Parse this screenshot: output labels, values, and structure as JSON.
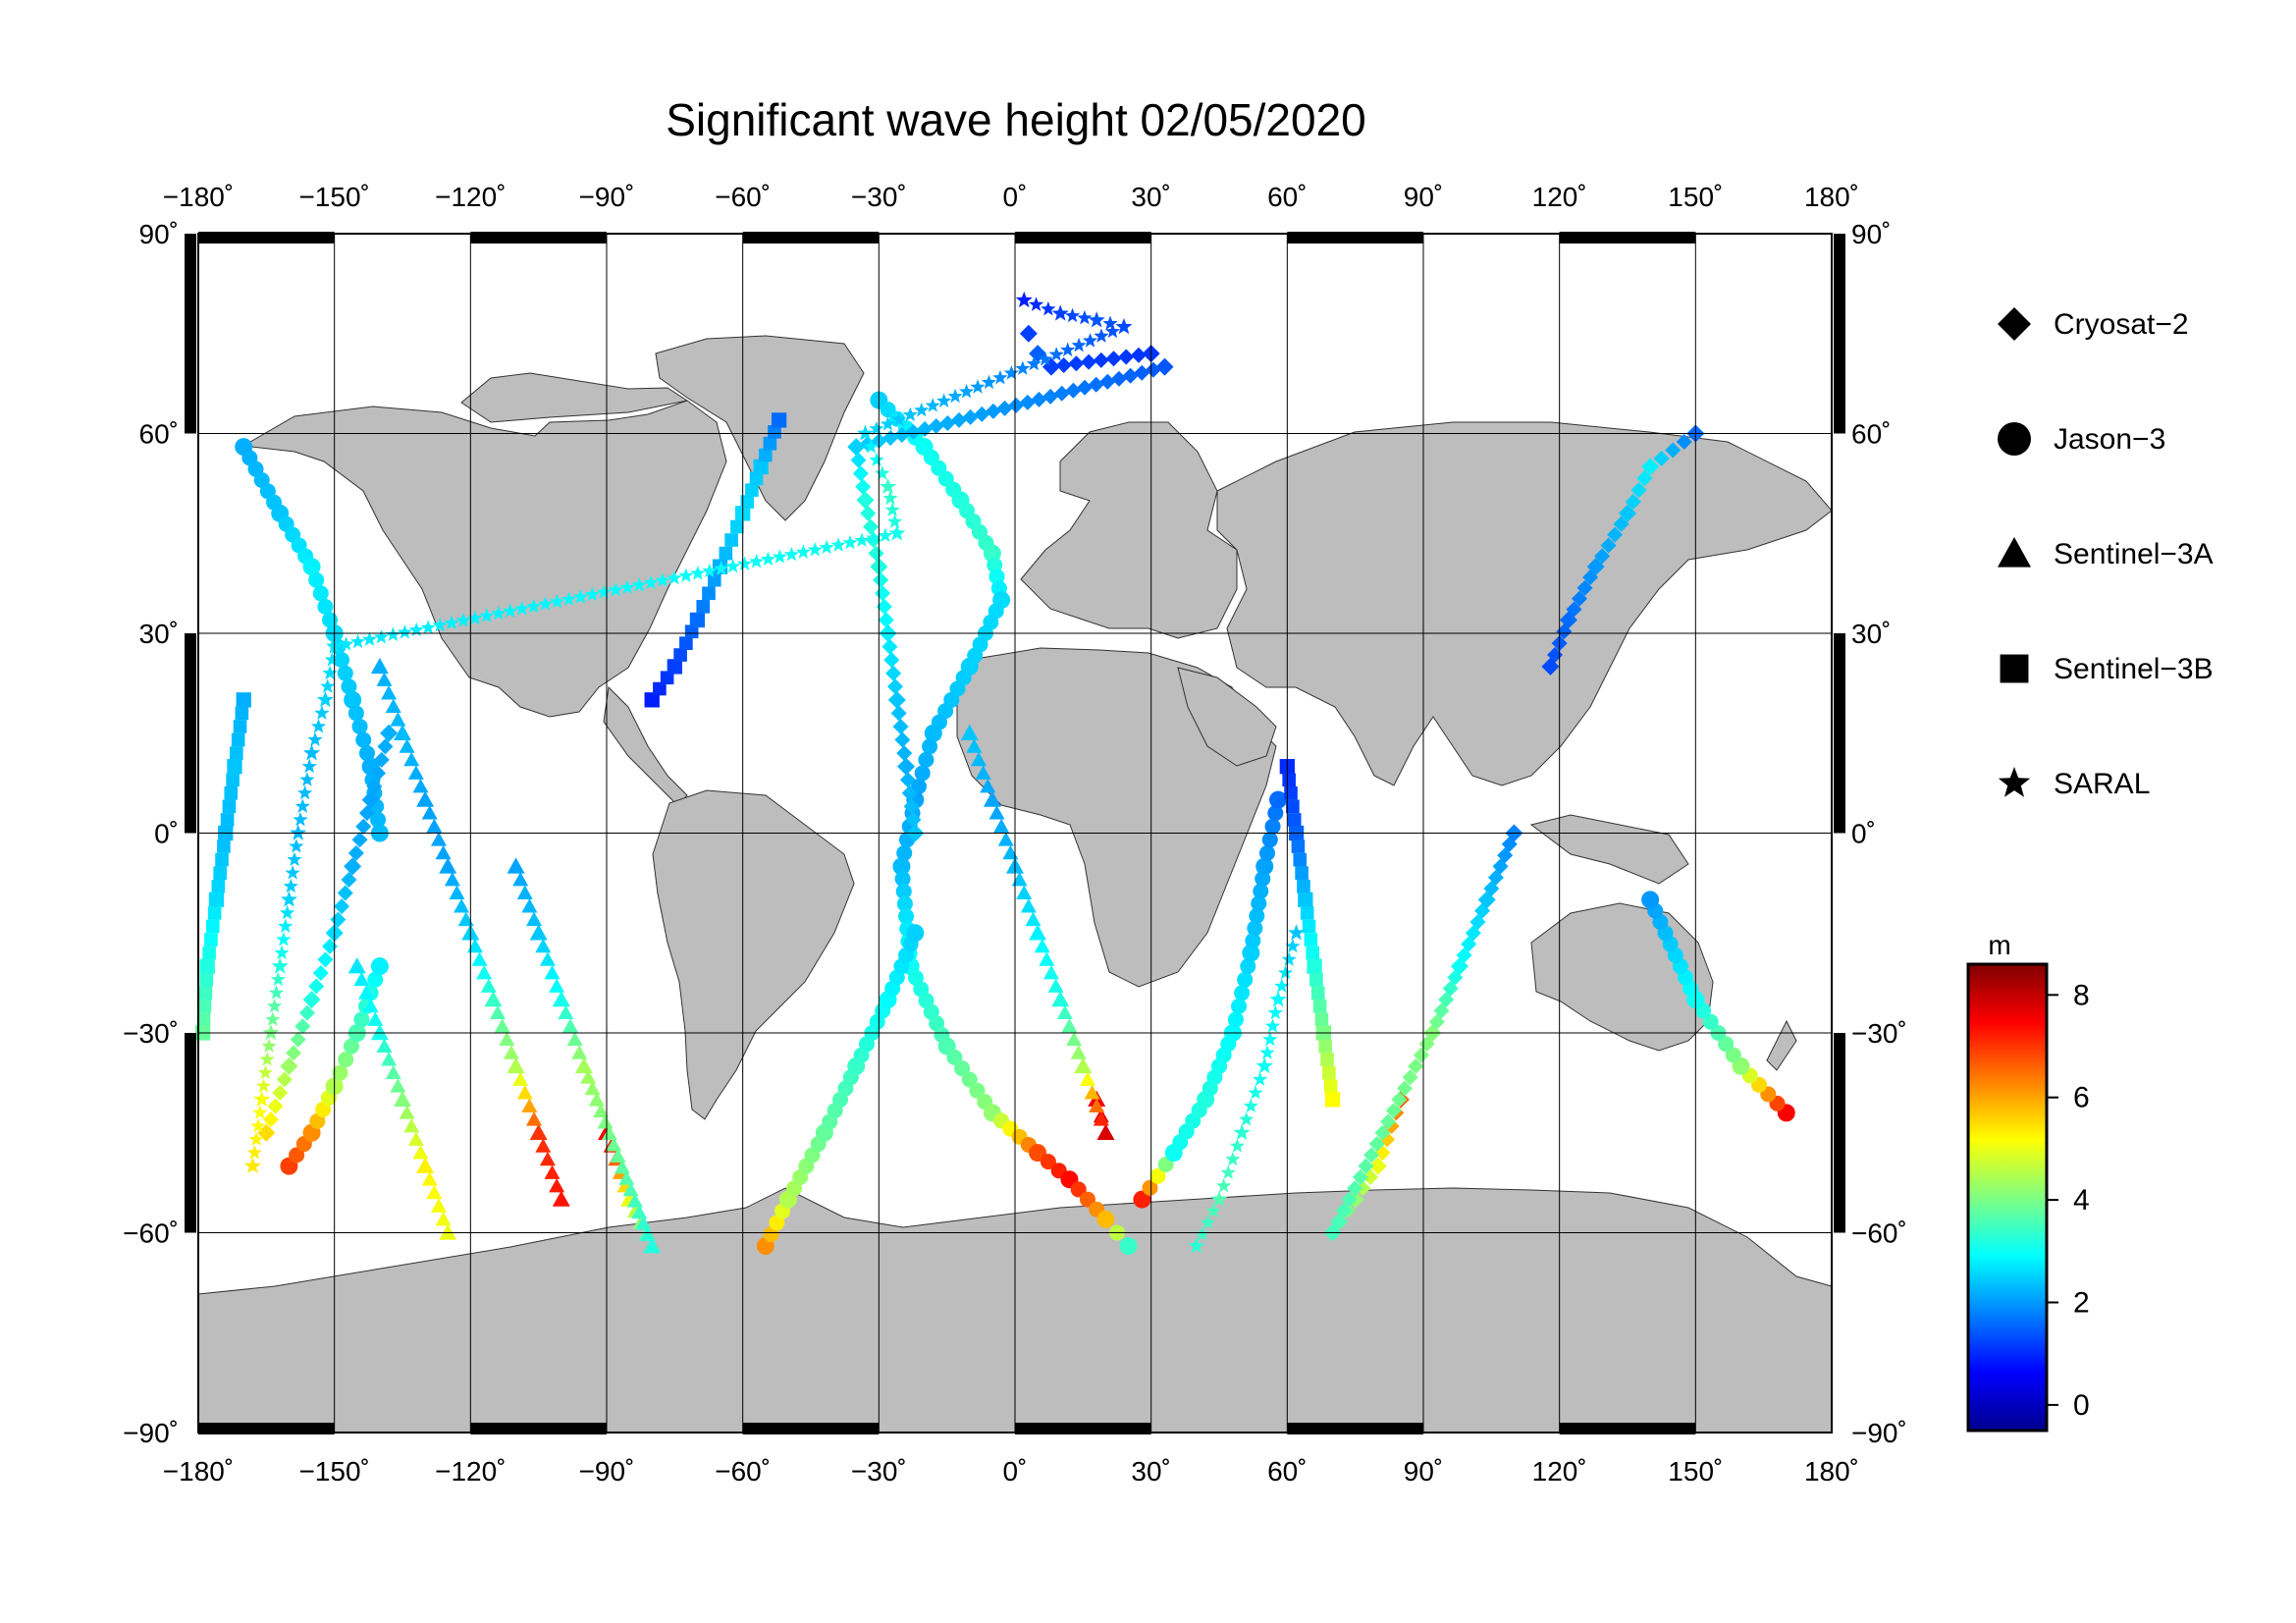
{
  "title": "Significant wave height 02/05/2020",
  "x_ticks": [
    {
      "label": "−180˚",
      "lon": -180
    },
    {
      "label": "−150˚",
      "lon": -150
    },
    {
      "label": "−120˚",
      "lon": -120
    },
    {
      "label": "−90˚",
      "lon": -90
    },
    {
      "label": "−60˚",
      "lon": -60
    },
    {
      "label": "−30˚",
      "lon": -30
    },
    {
      "label": "0˚",
      "lon": 0
    },
    {
      "label": "30˚",
      "lon": 30
    },
    {
      "label": "60˚",
      "lon": 60
    },
    {
      "label": "90˚",
      "lon": 90
    },
    {
      "label": "120˚",
      "lon": 120
    },
    {
      "label": "150˚",
      "lon": 150
    },
    {
      "label": "180˚",
      "lon": 180
    }
  ],
  "y_ticks": [
    {
      "label": "90˚",
      "lat": 90
    },
    {
      "label": "60˚",
      "lat": 60
    },
    {
      "label": "30˚",
      "lat": 30
    },
    {
      "label": "0˚",
      "lat": 0
    },
    {
      "label": "−30˚",
      "lat": -30
    },
    {
      "label": "−60˚",
      "lat": -60
    },
    {
      "label": "−90˚",
      "lat": -90
    }
  ],
  "legend": [
    {
      "symbol": "diamond",
      "label": "Cryosat−2"
    },
    {
      "symbol": "circle",
      "label": "Jason−3"
    },
    {
      "symbol": "triangle",
      "label": "Sentinel−3A"
    },
    {
      "symbol": "square",
      "label": "Sentinel−3B"
    },
    {
      "symbol": "star",
      "label": "SARAL"
    }
  ],
  "colorbar": {
    "unit": "m",
    "min": -0.5,
    "max": 8.6,
    "ticks": [
      {
        "label": "0",
        "value": 0
      },
      {
        "label": "2",
        "value": 2
      },
      {
        "label": "4",
        "value": 4
      },
      {
        "label": "6",
        "value": 6
      },
      {
        "label": "8",
        "value": 8
      }
    ],
    "colors": [
      "#00008f",
      "#0000ff",
      "#0080ff",
      "#00ffff",
      "#80ff80",
      "#ffff00",
      "#ff8000",
      "#ff0000",
      "#800000"
    ]
  },
  "colors": {
    "land": "#bdbdbd",
    "ocean": "#ffffff",
    "grid": "#000000"
  },
  "chart_data": {
    "type": "scatter",
    "projection": "equirectangular",
    "xlim": [
      -180,
      180
    ],
    "ylim": [
      -90,
      90
    ],
    "value_unit": "m",
    "tracks": [
      {
        "satellite": "Jason−3",
        "symbol": "circle",
        "points": [
          [
            -30,
            65,
            2.5
          ],
          [
            -20,
            58,
            3
          ],
          [
            -12,
            50,
            3.2
          ],
          [
            -5,
            42,
            3.4
          ],
          [
            -3,
            35,
            2.6
          ],
          [
            -10,
            25,
            2.5
          ],
          [
            -18,
            15,
            2.3
          ],
          [
            -22,
            5,
            2.1
          ],
          [
            -25,
            -5,
            2.3
          ],
          [
            -23,
            -20,
            3
          ],
          [
            -15,
            -32,
            3.6
          ],
          [
            -5,
            -42,
            4.2
          ],
          [
            5,
            -48,
            6.8
          ],
          [
            12,
            -52,
            7.4
          ],
          [
            20,
            -58,
            5.8
          ],
          [
            25,
            -62,
            3.4
          ]
        ]
      },
      {
        "satellite": "Jason−3",
        "symbol": "circle",
        "points": [
          [
            28,
            -55,
            7.2
          ],
          [
            35,
            -48,
            3
          ],
          [
            42,
            -40,
            3.2
          ],
          [
            48,
            -30,
            2.9
          ],
          [
            52,
            -18,
            2.5
          ],
          [
            55,
            -5,
            2.1
          ],
          [
            58,
            5,
            1.6
          ]
        ]
      },
      {
        "satellite": "Jason−3",
        "symbol": "circle",
        "points": [
          [
            170,
            -42,
            7.5
          ],
          [
            160,
            -35,
            4.2
          ],
          [
            150,
            -25,
            3
          ],
          [
            140,
            -10,
            2
          ]
        ]
      },
      {
        "satellite": "Jason−3",
        "symbol": "circle",
        "points": [
          [
            -55,
            -62,
            6.2
          ],
          [
            -50,
            -55,
            4.5
          ],
          [
            -42,
            -45,
            3.8
          ],
          [
            -35,
            -35,
            3.4
          ],
          [
            -28,
            -25,
            2.9
          ],
          [
            -22,
            -15,
            2.5
          ]
        ]
      },
      {
        "satellite": "Jason−3",
        "symbol": "circle",
        "points": [
          [
            -170,
            58,
            2.2
          ],
          [
            -162,
            48,
            2.4
          ],
          [
            -155,
            40,
            2.8
          ],
          [
            -150,
            30,
            2.6
          ],
          [
            -146,
            20,
            2.4
          ],
          [
            -142,
            10,
            2.2
          ],
          [
            -140,
            0,
            2.3
          ]
        ]
      },
      {
        "satellite": "Jason−3",
        "symbol": "circle",
        "points": [
          [
            -160,
            -50,
            6.9
          ],
          [
            -155,
            -45,
            6.2
          ],
          [
            -150,
            -38,
            4.5
          ],
          [
            -145,
            -30,
            3.6
          ],
          [
            -140,
            -20,
            2.8
          ]
        ]
      },
      {
        "satellite": "Cryosat−2",
        "symbol": "diamond",
        "points": [
          [
            3,
            75,
            1.2
          ],
          [
            5,
            72,
            1.5
          ],
          [
            8,
            70,
            1.2
          ],
          [
            30,
            72,
            1.1
          ],
          [
            33,
            70,
            1.4
          ],
          [
            -35,
            58,
            2.5
          ],
          [
            -33,
            50,
            3.2
          ],
          [
            -30,
            40,
            3.2
          ],
          [
            -28,
            30,
            2.8
          ],
          [
            -26,
            20,
            2.4
          ],
          [
            -24,
            10,
            2.2
          ],
          [
            -22,
            0,
            2.4
          ]
        ]
      },
      {
        "satellite": "Cryosat−2",
        "symbol": "diamond",
        "points": [
          [
            -165,
            -45,
            5.5
          ],
          [
            -160,
            -35,
            4.3
          ],
          [
            -155,
            -25,
            3.2
          ],
          [
            -150,
            -15,
            2.6
          ],
          [
            -146,
            -5,
            2.2
          ],
          [
            -142,
            5,
            2.1
          ],
          [
            -138,
            15,
            2.2
          ]
        ]
      },
      {
        "satellite": "Cryosat−2",
        "symbol": "diamond",
        "points": [
          [
            85,
            -40,
            6.6
          ],
          [
            80,
            -50,
            5
          ],
          [
            75,
            -55,
            4.2
          ],
          [
            70,
            -60,
            3.5
          ],
          [
            92,
            -30,
            4.1
          ],
          [
            98,
            -20,
            3
          ],
          [
            104,
            -10,
            2.4
          ],
          [
            110,
            0,
            1.8
          ]
        ]
      },
      {
        "satellite": "Cryosat−2",
        "symbol": "diamond",
        "points": [
          [
            118,
            25,
            1.3
          ],
          [
            122,
            32,
            1.6
          ],
          [
            128,
            40,
            2
          ],
          [
            135,
            48,
            2.4
          ],
          [
            140,
            55,
            2.8
          ],
          [
            150,
            60,
            1.6
          ]
        ]
      },
      {
        "satellite": "Sentinel−3A",
        "symbol": "triangle",
        "points": [
          [
            -100,
            -55,
            7.3
          ],
          [
            -105,
            -45,
            7
          ],
          [
            -110,
            -35,
            4.5
          ],
          [
            -115,
            -25,
            3.4
          ],
          [
            -120,
            -15,
            2.5
          ],
          [
            -125,
            -5,
            2.1
          ],
          [
            -130,
            5,
            2.1
          ],
          [
            -135,
            15,
            2.3
          ],
          [
            -140,
            25,
            2.2
          ]
        ]
      },
      {
        "satellite": "Sentinel−3A",
        "symbol": "triangle",
        "points": [
          [
            -90,
            -45,
            7.6
          ],
          [
            -85,
            -55,
            5
          ],
          [
            -80,
            -62,
            3.2
          ],
          [
            -95,
            -35,
            4.4
          ],
          [
            -100,
            -25,
            3.1
          ],
          [
            -105,
            -15,
            2.4
          ],
          [
            -110,
            -5,
            2.1
          ]
        ]
      },
      {
        "satellite": "Sentinel−3A",
        "symbol": "triangle",
        "points": [
          [
            18,
            -40,
            7.6
          ],
          [
            20,
            -45,
            7.8
          ],
          [
            15,
            -35,
            4.5
          ],
          [
            10,
            -25,
            3.2
          ],
          [
            5,
            -15,
            2.8
          ],
          [
            0,
            -5,
            2.3
          ],
          [
            -5,
            5,
            2.1
          ],
          [
            -10,
            15,
            2.4
          ]
        ]
      },
      {
        "satellite": "Sentinel−3A",
        "symbol": "triangle",
        "points": [
          [
            -125,
            -60,
            5
          ],
          [
            -130,
            -50,
            5.3
          ],
          [
            -135,
            -40,
            4.1
          ],
          [
            -140,
            -30,
            3.1
          ],
          [
            -145,
            -20,
            2.7
          ]
        ]
      },
      {
        "satellite": "Sentinel−3B",
        "symbol": "square",
        "points": [
          [
            -80,
            20,
            0.9
          ],
          [
            -75,
            25,
            1.2
          ],
          [
            -70,
            32,
            1.6
          ],
          [
            -65,
            40,
            2.2
          ],
          [
            -60,
            48,
            2.6
          ],
          [
            -56,
            55,
            2.4
          ],
          [
            -52,
            62,
            1.6
          ]
        ]
      },
      {
        "satellite": "Sentinel−3B",
        "symbol": "square",
        "points": [
          [
            60,
            10,
            1
          ],
          [
            62,
            0,
            1.5
          ],
          [
            64,
            -10,
            2.4
          ],
          [
            66,
            -20,
            3.2
          ],
          [
            68,
            -30,
            4
          ],
          [
            70,
            -40,
            5.2
          ]
        ]
      },
      {
        "satellite": "Sentinel−3B",
        "symbol": "square",
        "points": [
          [
            -170,
            20,
            2.2
          ],
          [
            -172,
            10,
            2.4
          ],
          [
            -174,
            0,
            2.3
          ],
          [
            -176,
            -10,
            2.6
          ],
          [
            -178,
            -20,
            3.2
          ],
          [
            -179,
            -30,
            3.8
          ]
        ]
      },
      {
        "satellite": "SARAL",
        "symbol": "star",
        "points": [
          [
            2,
            80,
            0.9
          ],
          [
            10,
            78,
            1.2
          ],
          [
            18,
            77,
            1.4
          ],
          [
            24,
            76,
            1.3
          ],
          [
            -33,
            60,
            2.6
          ],
          [
            -28,
            52,
            3.4
          ],
          [
            -26,
            45,
            3.1
          ],
          [
            -150,
            28,
            2.7
          ],
          [
            -152,
            20,
            2.5
          ],
          [
            -155,
            12,
            2.3
          ],
          [
            -158,
            0,
            2.3
          ],
          [
            -160,
            -10,
            2.5
          ],
          [
            -162,
            -20,
            3.2
          ],
          [
            -164,
            -30,
            4
          ],
          [
            -166,
            -40,
            5.1
          ],
          [
            -168,
            -50,
            5.4
          ]
        ]
      },
      {
        "satellite": "SARAL",
        "symbol": "star",
        "points": [
          [
            40,
            -62,
            3.3
          ],
          [
            45,
            -55,
            3.6
          ],
          [
            50,
            -45,
            3.3
          ],
          [
            55,
            -35,
            3
          ],
          [
            58,
            -25,
            2.9
          ],
          [
            62,
            -15,
            2.4
          ]
        ]
      }
    ]
  }
}
